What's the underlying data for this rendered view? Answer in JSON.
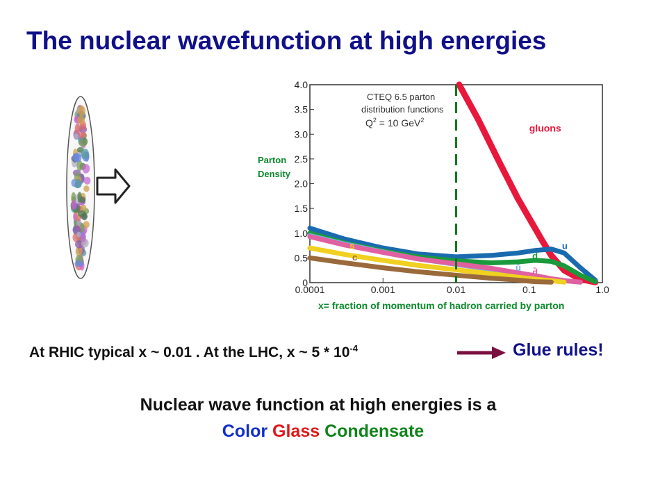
{
  "title": "The nuclear wavefunction at high energies",
  "chart_data": {
    "type": "line",
    "panel_text": [
      "CTEQ 6.5 parton",
      "distribution functions",
      "Q",
      "2",
      " = 10 GeV",
      "2"
    ],
    "ylabel": [
      "Parton",
      "Density"
    ],
    "xlabel": "x= fraction of momentum of hadron carried by parton",
    "x_scale": "log",
    "xlim": [
      0.0001,
      1.0
    ],
    "ylim": [
      0,
      4.0
    ],
    "x_ticks": [
      0.0001,
      0.001,
      0.01,
      0.1,
      1.0
    ],
    "x_tick_labels": [
      "0.0001",
      "0.001",
      "0.01",
      "0.1",
      "1.0"
    ],
    "y_ticks": [
      0,
      0.5,
      1.0,
      1.5,
      2.0,
      2.5,
      3.0,
      3.5,
      4.0
    ],
    "y_tick_labels": [
      "0",
      "0.5",
      "1.0",
      "1.5",
      "2.0",
      "2.5",
      "3.0",
      "3.5",
      "4.0"
    ],
    "marker_line_x": 0.01,
    "series": [
      {
        "name": "gluons",
        "color": "#e8183c",
        "x": [
          0.011,
          0.02,
          0.04,
          0.07,
          0.1,
          0.15,
          0.2,
          0.3,
          0.5,
          0.8
        ],
        "y": [
          4.0,
          3.3,
          2.4,
          1.7,
          1.3,
          0.85,
          0.55,
          0.25,
          0.07,
          0.01
        ],
        "label_at": [
          0.1,
          3.05
        ]
      },
      {
        "name": "u",
        "color": "#1a6ab0",
        "x": [
          0.0001,
          0.0003,
          0.001,
          0.003,
          0.01,
          0.03,
          0.07,
          0.12,
          0.2,
          0.3,
          0.5,
          0.8
        ],
        "y": [
          1.1,
          0.88,
          0.7,
          0.58,
          0.52,
          0.55,
          0.6,
          0.65,
          0.68,
          0.6,
          0.3,
          0.05
        ],
        "label_at": [
          0.28,
          0.68
        ]
      },
      {
        "name": "d",
        "color": "#1a9a3c",
        "x": [
          0.0001,
          0.0003,
          0.001,
          0.003,
          0.01,
          0.03,
          0.07,
          0.12,
          0.2,
          0.3,
          0.5,
          0.8
        ],
        "y": [
          1.0,
          0.8,
          0.64,
          0.52,
          0.44,
          0.4,
          0.42,
          0.45,
          0.43,
          0.34,
          0.15,
          0.02
        ],
        "label_at": [
          0.11,
          0.48
        ]
      },
      {
        "name": "ū",
        "color": "#7aaee0",
        "x": [
          0.0001,
          0.0003,
          0.001,
          0.003,
          0.01,
          0.03,
          0.07,
          0.12,
          0.2,
          0.3,
          0.5
        ],
        "y": [
          0.95,
          0.78,
          0.62,
          0.48,
          0.37,
          0.27,
          0.18,
          0.12,
          0.07,
          0.04,
          0.01
        ],
        "label_at": [
          0.065,
          0.24
        ]
      },
      {
        "name": "d̄",
        "color": "#e060a0",
        "x": [
          0.0001,
          0.0003,
          0.001,
          0.003,
          0.01,
          0.03,
          0.07,
          0.12,
          0.2,
          0.3,
          0.5
        ],
        "y": [
          0.93,
          0.76,
          0.61,
          0.48,
          0.38,
          0.29,
          0.2,
          0.14,
          0.08,
          0.04,
          0.01
        ],
        "label_at": [
          0.11,
          0.15
        ]
      },
      {
        "name": "s",
        "color": "#f0d020",
        "x": [
          0.0001,
          0.0003,
          0.001,
          0.003,
          0.01,
          0.03,
          0.07,
          0.12,
          0.2,
          0.3
        ],
        "y": [
          0.7,
          0.57,
          0.45,
          0.35,
          0.26,
          0.18,
          0.11,
          0.07,
          0.04,
          0.01
        ],
        "label_at": [
          0.00035,
          0.68
        ]
      },
      {
        "name": "c",
        "color": "#9a6a3a",
        "x": [
          0.0001,
          0.0003,
          0.001,
          0.003,
          0.01,
          0.03,
          0.07,
          0.12,
          0.2
        ],
        "y": [
          0.5,
          0.4,
          0.3,
          0.22,
          0.15,
          0.09,
          0.05,
          0.02,
          0.01
        ],
        "label_at": [
          0.00038,
          0.45
        ]
      }
    ]
  },
  "statement": {
    "lead": "At RHIC typical x ~ 0.01 . At the LHC, x ~ 5 * 10",
    "exponent": "-4",
    "punchline": "Glue rules!"
  },
  "conclusion": {
    "line1": "Nuclear wave function at high energies is a",
    "word_color": "Color",
    "word_glass": "Glass",
    "word_condensate": "Condensate"
  },
  "colors": {
    "title": "#10108a",
    "axis_label": "#0a8a2a",
    "marker_line": "#0a7a1a",
    "arrow": "#7a1040"
  }
}
